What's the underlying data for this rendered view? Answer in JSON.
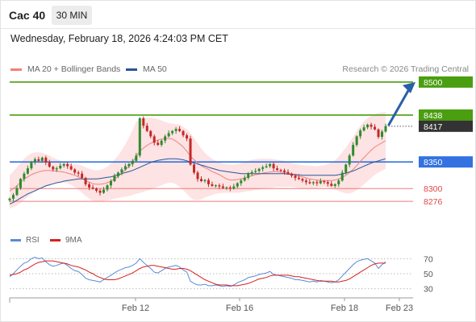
{
  "header": {
    "symbol": "Cac 40",
    "timeframe": "30 MIN",
    "datetime": "Wednesday, February 18, 2026 4:24:03 PM CET"
  },
  "legend": {
    "ma20": "MA 20 + Bollinger Bands",
    "ma50": "MA 50",
    "credit": "Research © 2026 Trading Central"
  },
  "rsi_legend": {
    "rsi": "RSI",
    "ma9": "9MA"
  },
  "colors": {
    "ma20": "#f08080",
    "band_fill": "#fde3e3",
    "ma50": "#2a5599",
    "resistance": "#4a9e0f",
    "pivot": "#3372e0",
    "support": "#f27a7a",
    "last": "#333333",
    "candle_up": "#2e8b2e",
    "candle_down": "#c62828",
    "target_arrow": "#2a5fa8"
  },
  "chart_data": [
    {
      "type": "candlestick",
      "title": "Cac 40",
      "ylim": [
        8255,
        8515
      ],
      "x_ticks": [
        "Feb 12",
        "Feb 16",
        "Feb 18",
        "Feb 23"
      ],
      "levels": [
        {
          "label": "8500",
          "value": 8500,
          "kind": "target"
        },
        {
          "label": "8438",
          "value": 8438,
          "kind": "resistance"
        },
        {
          "label": "8417",
          "value": 8417,
          "kind": "last"
        },
        {
          "label": "8350",
          "value": 8350,
          "kind": "pivot"
        },
        {
          "label": "8300",
          "value": 8300,
          "kind": "support"
        },
        {
          "label": "8276",
          "value": 8276,
          "kind": "support"
        }
      ],
      "close": [
        8281,
        8288,
        8301,
        8318,
        8328,
        8338,
        8350,
        8355,
        8352,
        8358,
        8349,
        8341,
        8336,
        8338,
        8343,
        8346,
        8342,
        8336,
        8330,
        8328,
        8320,
        8308,
        8302,
        8300,
        8296,
        8292,
        8298,
        8306,
        8314,
        8323,
        8330,
        8336,
        8342,
        8346,
        8352,
        8362,
        8432,
        8418,
        8408,
        8398,
        8386,
        8382,
        8390,
        8398,
        8404,
        8408,
        8412,
        8408,
        8400,
        8394,
        8345,
        8330,
        8318,
        8314,
        8316,
        8308,
        8305,
        8306,
        8304,
        8301,
        8302,
        8300,
        8304,
        8310,
        8315,
        8320,
        8329,
        8331,
        8333,
        8337,
        8340,
        8342,
        8346,
        8338,
        8335,
        8334,
        8331,
        8328,
        8324,
        8320,
        8318,
        8315,
        8312,
        8310,
        8312,
        8310,
        8314,
        8312,
        8309,
        8305,
        8308,
        8315,
        8330,
        8345,
        8362,
        8382,
        8398,
        8409,
        8415,
        8420,
        8416,
        8411,
        8397,
        8407,
        8417
      ],
      "ma20": [
        8295,
        8300,
        8305,
        8312,
        8318,
        8322,
        8326,
        8329,
        8331,
        8333,
        8334,
        8334,
        8333,
        8333,
        8332,
        8331,
        8329,
        8327,
        8325,
        8322,
        8319,
        8315,
        8312,
        8309,
        8308,
        8308,
        8309,
        8311,
        8314,
        8318,
        8323,
        8329,
        8335,
        8342,
        8350,
        8360,
        8370,
        8376,
        8381,
        8385,
        8388,
        8391,
        8393,
        8394,
        8394,
        8393,
        8389,
        8384,
        8378,
        8370,
        8361,
        8354,
        8348,
        8343,
        8339,
        8336,
        8332,
        8329,
        8326,
        8322,
        8318,
        8316,
        8316,
        8317,
        8318,
        8320,
        8322,
        8324,
        8326,
        8327,
        8329,
        8330,
        8331,
        8332,
        8332,
        8331,
        8330,
        8329,
        8327,
        8325,
        8323,
        8322,
        8320,
        8318,
        8317,
        8316,
        8315,
        8315,
        8315,
        8315,
        8316,
        8318,
        8321,
        8325,
        8330,
        8336,
        8343,
        8351,
        8358,
        8365,
        8372,
        8378,
        8382,
        8386,
        8390
      ],
      "ma50": [
        8271,
        8274,
        8278,
        8282,
        8286,
        8290,
        8293,
        8296,
        8299,
        8302,
        8305,
        8307,
        8309,
        8311,
        8312,
        8314,
        8315,
        8316,
        8317,
        8318,
        8318,
        8318,
        8318,
        8318,
        8318,
        8319,
        8320,
        8321,
        8322,
        8324,
        8326,
        8328,
        8330,
        8332,
        8334,
        8337,
        8340,
        8343,
        8346,
        8349,
        8351,
        8353,
        8354,
        8355,
        8356,
        8356,
        8356,
        8355,
        8354,
        8352,
        8350,
        8348,
        8346,
        8344,
        8342,
        8340,
        8338,
        8336,
        8334,
        8333,
        8332,
        8331,
        8330,
        8329,
        8328,
        8328,
        8328,
        8328,
        8328,
        8328,
        8328,
        8328,
        8328,
        8328,
        8328,
        8328,
        8328,
        8327,
        8327,
        8326,
        8326,
        8325,
        8325,
        8325,
        8325,
        8325,
        8325,
        8325,
        8325,
        8325,
        8325,
        8326,
        8327,
        8329,
        8331,
        8333,
        8336,
        8339,
        8342,
        8345,
        8348,
        8350,
        8352,
        8354,
        8356
      ],
      "bb_upper": [
        8325,
        8332,
        8340,
        8348,
        8356,
        8362,
        8366,
        8368,
        8368,
        8367,
        8365,
        8362,
        8358,
        8355,
        8352,
        8350,
        8348,
        8347,
        8346,
        8345,
        8343,
        8340,
        8337,
        8335,
        8334,
        8335,
        8337,
        8341,
        8347,
        8354,
        8362,
        8372,
        8383,
        8396,
        8410,
        8425,
        8430,
        8432,
        8433,
        8433,
        8432,
        8430,
        8428,
        8425,
        8423,
        8422,
        8421,
        8420,
        8416,
        8411,
        8404,
        8395,
        8385,
        8375,
        8367,
        8361,
        8356,
        8352,
        8349,
        8347,
        8346,
        8345,
        8345,
        8346,
        8348,
        8350,
        8352,
        8354,
        8355,
        8356,
        8356,
        8356,
        8356,
        8355,
        8354,
        8353,
        8352,
        8350,
        8348,
        8346,
        8345,
        8344,
        8343,
        8343,
        8342,
        8342,
        8343,
        8344,
        8346,
        8349,
        8353,
        8360,
        8368,
        8377,
        8387,
        8397,
        8408,
        8418,
        8426,
        8432,
        8437,
        8440,
        8442,
        8443,
        8444
      ],
      "bb_lower": [
        8262,
        8265,
        8268,
        8273,
        8279,
        8284,
        8290,
        8294,
        8298,
        8301,
        8304,
        8306,
        8308,
        8310,
        8311,
        8311,
        8310,
        8307,
        8303,
        8298,
        8292,
        8286,
        8281,
        8277,
        8276,
        8276,
        8277,
        8278,
        8279,
        8281,
        8282,
        8284,
        8285,
        8286,
        8288,
        8290,
        8292,
        8294,
        8296,
        8298,
        8301,
        8304,
        8306,
        8309,
        8311,
        8311,
        8308,
        8303,
        8297,
        8290,
        8283,
        8279,
        8278,
        8280,
        8283,
        8286,
        8288,
        8290,
        8291,
        8292,
        8292,
        8292,
        8292,
        8292,
        8293,
        8294,
        8295,
        8296,
        8297,
        8298,
        8299,
        8300,
        8301,
        8302,
        8303,
        8303,
        8303,
        8303,
        8303,
        8302,
        8301,
        8300,
        8299,
        8299,
        8300,
        8301,
        8302,
        8303,
        8302,
        8300,
        8298,
        8295,
        8293,
        8291,
        8291,
        8293,
        8297,
        8302,
        8308,
        8314,
        8320,
        8326,
        8330,
        8334,
        8337
      ]
    },
    {
      "type": "line",
      "title": "RSI",
      "ylim": [
        20,
        80
      ],
      "y_ticks": [
        "70",
        "50",
        "30"
      ],
      "series": [
        {
          "name": "RSI",
          "values": [
            46,
            50,
            55,
            60,
            64,
            66,
            70,
            72,
            70,
            71,
            66,
            62,
            60,
            61,
            63,
            64,
            61,
            57,
            54,
            53,
            49,
            44,
            42,
            41,
            40,
            39,
            42,
            45,
            48,
            51,
            54,
            56,
            58,
            59,
            61,
            64,
            70,
            65,
            61,
            57,
            52,
            51,
            54,
            57,
            59,
            60,
            61,
            59,
            55,
            52,
            40,
            37,
            35,
            35,
            36,
            34,
            34,
            35,
            34,
            33,
            34,
            33,
            35,
            38,
            40,
            42,
            45,
            46,
            47,
            49,
            50,
            51,
            53,
            49,
            48,
            47,
            46,
            45,
            44,
            42,
            42,
            41,
            40,
            39,
            40,
            39,
            41,
            40,
            39,
            38,
            39,
            42,
            47,
            52,
            57,
            62,
            66,
            68,
            69,
            70,
            67,
            64,
            57,
            62,
            66
          ]
        },
        {
          "name": "9MA",
          "values": [
            48,
            49,
            50,
            52,
            55,
            57,
            60,
            63,
            65,
            66,
            67,
            67,
            67,
            66,
            65,
            64,
            63,
            61,
            60,
            59,
            57,
            55,
            52,
            50,
            47,
            45,
            43,
            42,
            42,
            42,
            43,
            45,
            47,
            49,
            51,
            54,
            57,
            59,
            60,
            61,
            61,
            60,
            59,
            58,
            57,
            56,
            56,
            57,
            57,
            56,
            54,
            51,
            48,
            45,
            42,
            40,
            38,
            36,
            35,
            35,
            35,
            34,
            34,
            34,
            35,
            36,
            37,
            39,
            41,
            43,
            44,
            45,
            47,
            48,
            48,
            48,
            48,
            48,
            47,
            46,
            46,
            45,
            44,
            43,
            42,
            41,
            40,
            40,
            40,
            40,
            39,
            39,
            40,
            41,
            43,
            46,
            49,
            52,
            55,
            58,
            61,
            63,
            64,
            64,
            64
          ]
        }
      ]
    }
  ]
}
